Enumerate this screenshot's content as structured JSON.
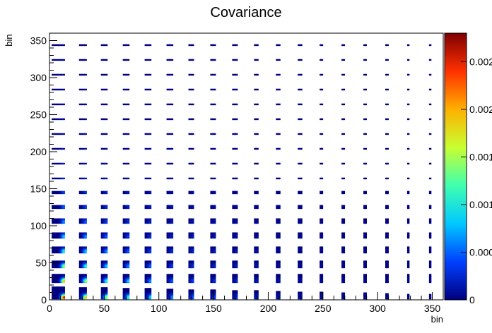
{
  "chart_data": {
    "type": "heatmap",
    "title": "Covariance",
    "xlabel": "bin",
    "ylabel": "bin",
    "xlim": [
      0,
      360
    ],
    "ylim": [
      0,
      360
    ],
    "x_ticks": [
      0,
      50,
      100,
      150,
      200,
      250,
      300,
      350
    ],
    "y_ticks": [
      0,
      50,
      100,
      150,
      200,
      250,
      300,
      350
    ],
    "block_size": 20,
    "block_count": 18,
    "colorbar": {
      "min": 0,
      "max": 0.0028,
      "palette": "rainbow",
      "visible_tick_labels": [
        "0",
        "0.000",
        "0.001",
        "0.001",
        "0.002",
        "0.002"
      ],
      "colors": [
        "#00007f",
        "#0040ff",
        "#00c8ff",
        "#40ffb0",
        "#c8ff30",
        "#ffb000",
        "#ff3000",
        "#7f0000"
      ]
    },
    "structure": "Block covariance matrix of 18 x 18 blocks (20 bins each). Within each block only a few bins are filled; the strongest values (orange/red) appear in the lower-left blocks and decay toward the top-right."
  }
}
